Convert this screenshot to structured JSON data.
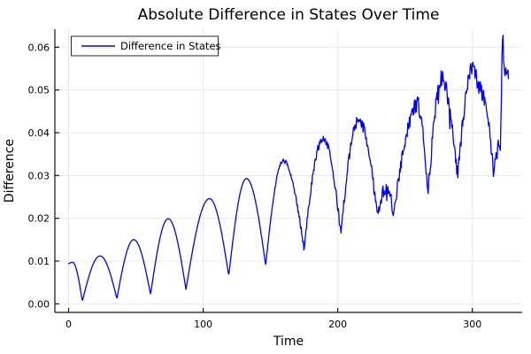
{
  "title": "Absolute Difference in States Over Time",
  "legend": {
    "label": "Difference in States"
  },
  "axes": {
    "xlabel": "Time",
    "ylabel": "Difference",
    "xtick_values": [
      0,
      100,
      200,
      300
    ],
    "xtick_labels": [
      "0",
      "100",
      "200",
      "300"
    ],
    "ytick_values": [
      0.0,
      0.01,
      0.02,
      0.03,
      0.04,
      0.05,
      0.06
    ],
    "ytick_labels": [
      "0.00",
      "0.01",
      "0.02",
      "0.03",
      "0.04",
      "0.05",
      "0.06"
    ],
    "xlim": [
      -10.2,
      337.0
    ],
    "ylim": [
      -0.002,
      0.0642
    ],
    "grid": true,
    "legend_position": "top-left"
  },
  "colors": {
    "line": "#0000ff",
    "grid": "#e8e8e8",
    "axis": "#141414",
    "tick": "#141414",
    "legend_border": "#2b2b2b",
    "legend_bg": "#ffffff",
    "background": "#ffffff"
  },
  "chart_data": {
    "type": "line",
    "title": "Absolute Difference in States Over Time",
    "xlabel": "Time",
    "ylabel": "Difference",
    "xlim": [
      -10.2,
      337.0
    ],
    "ylim": [
      -0.002,
      0.0642
    ],
    "series": [
      {
        "name": "Difference in States",
        "color": "#0000ff",
        "description": "Absolute difference between two trajectories: oscillation with period ~27 time units, linearly growing envelope, smooth before t~140 and increasingly jagged/noisy afterwards, ending in a sharp spike to ~0.063 near t=323.",
        "keypoints": [
          [
            0,
            0.0094,
            "m"
          ],
          [
            3,
            0.0097,
            "p"
          ],
          [
            10.2,
            0.0006,
            "d"
          ],
          [
            23.4,
            0.0112,
            "p"
          ],
          [
            35.9,
            0.0012,
            "d"
          ],
          [
            48.4,
            0.015,
            "p"
          ],
          [
            60.9,
            0.0022,
            "d"
          ],
          [
            74.0,
            0.0199,
            "p"
          ],
          [
            87.2,
            0.0034,
            "d"
          ],
          [
            104.7,
            0.0246,
            "p"
          ],
          [
            119.0,
            0.0066,
            "d"
          ],
          [
            132.1,
            0.0293,
            "p"
          ],
          [
            146.4,
            0.0091,
            "d"
          ],
          [
            159.5,
            0.0334,
            "p"
          ],
          [
            174.9,
            0.013,
            "d"
          ],
          [
            189.1,
            0.0386,
            "p"
          ],
          [
            202.3,
            0.0166,
            "d"
          ],
          [
            215.5,
            0.0429,
            "p"
          ],
          [
            229.5,
            0.021,
            "d"
          ],
          [
            236.0,
            0.0272,
            "p"
          ],
          [
            241.5,
            0.0207,
            "d"
          ],
          [
            259.5,
            0.0465,
            "p"
          ],
          [
            267.0,
            0.0255,
            "d"
          ],
          [
            277.5,
            0.0528,
            "p"
          ],
          [
            289.0,
            0.0297,
            "d"
          ],
          [
            300.5,
            0.0555,
            "p"
          ],
          [
            308.0,
            0.048,
            "m"
          ],
          [
            315.5,
            0.0306,
            "d"
          ],
          [
            319.5,
            0.0378,
            "m"
          ],
          [
            321.0,
            0.0355,
            "d"
          ],
          [
            322.7,
            0.063,
            "p"
          ],
          [
            324.0,
            0.0527,
            "d"
          ],
          [
            325.5,
            0.0552,
            "p"
          ],
          [
            327.0,
            0.0541,
            "m"
          ]
        ],
        "noise_amp_stops": [
          [
            0,
            0
          ],
          [
            135,
            0
          ],
          [
            180,
            0.0008
          ],
          [
            230,
            0.0015
          ],
          [
            260,
            0.0019
          ],
          [
            327,
            0.0022
          ]
        ],
        "sample_step": 0.4
      }
    ]
  }
}
